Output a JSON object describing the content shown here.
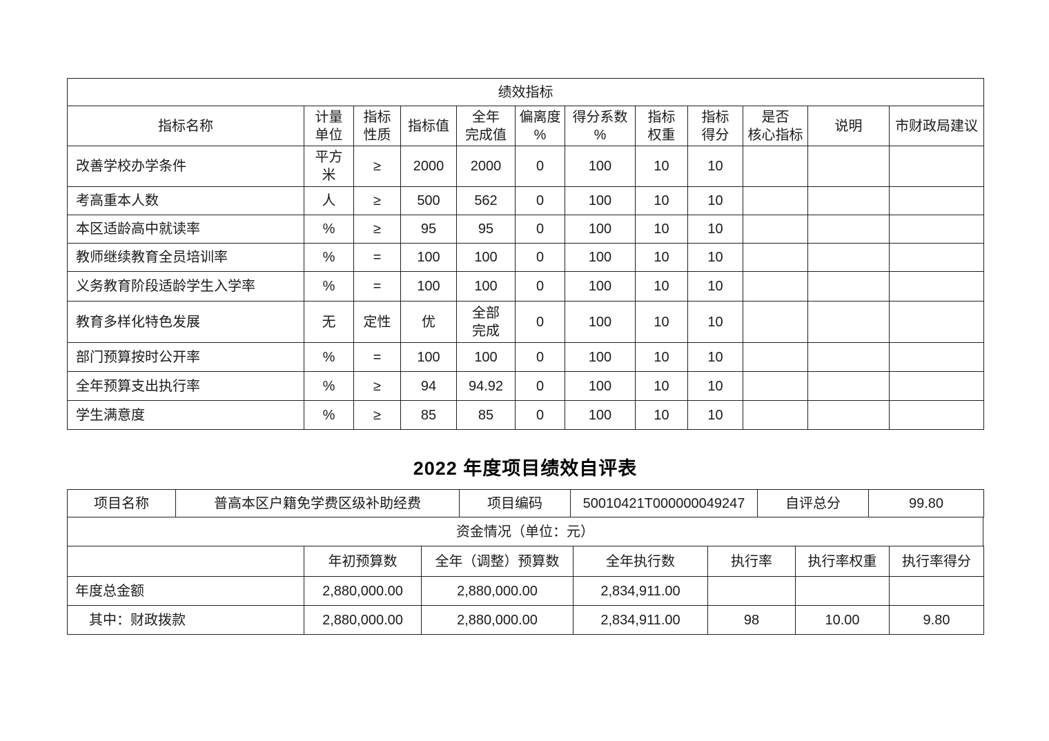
{
  "indicator_table": {
    "section_title": "绩效指标",
    "headers": [
      "指标名称",
      "计量\n单位",
      "指标\n性质",
      "指标值",
      "全年\n完成值",
      "偏离度\n%",
      "得分系数\n%",
      "指标\n权重",
      "指标\n得分",
      "是否\n核心指标",
      "说明",
      "市财政局建议"
    ],
    "rows": [
      [
        "改善学校办学条件",
        "平方\n米",
        "≥",
        "2000",
        "2000",
        "0",
        "100",
        "10",
        "10",
        "",
        "",
        ""
      ],
      [
        "考高重本人数",
        "人",
        "≥",
        "500",
        "562",
        "0",
        "100",
        "10",
        "10",
        "",
        "",
        ""
      ],
      [
        "本区适龄高中就读率",
        "%",
        "≥",
        "95",
        "95",
        "0",
        "100",
        "10",
        "10",
        "",
        "",
        ""
      ],
      [
        "教师继续教育全员培训率",
        "%",
        "=",
        "100",
        "100",
        "0",
        "100",
        "10",
        "10",
        "",
        "",
        ""
      ],
      [
        "义务教育阶段适龄学生入学率",
        "%",
        "=",
        "100",
        "100",
        "0",
        "100",
        "10",
        "10",
        "",
        "",
        ""
      ],
      [
        "教育多样化特色发展",
        "无",
        "定性",
        "优",
        "全部\n完成",
        "0",
        "100",
        "10",
        "10",
        "",
        "",
        ""
      ],
      [
        "部门预算按时公开率",
        "%",
        "=",
        "100",
        "100",
        "0",
        "100",
        "10",
        "10",
        "",
        "",
        ""
      ],
      [
        "全年预算支出执行率",
        "%",
        "≥",
        "94",
        "94.92",
        "0",
        "100",
        "10",
        "10",
        "",
        "",
        ""
      ],
      [
        "学生满意度",
        "%",
        "≥",
        "85",
        "85",
        "0",
        "100",
        "10",
        "10",
        "",
        "",
        ""
      ]
    ]
  },
  "self_eval": {
    "title": "2022 年度项目绩效自评表",
    "info": {
      "name_label": "项目名称",
      "name_value": "普高本区户籍免学费区级补助经费",
      "code_label": "项目编码",
      "code_value": "50010421T000000049247",
      "score_label": "自评总分",
      "score_value": "99.80"
    },
    "funding": {
      "section_title": "资金情况（单位：元）",
      "headers": [
        "",
        "年初预算数",
        "全年（调整）预算数",
        "全年执行数",
        "执行率",
        "执行率权重",
        "执行率得分"
      ],
      "rows": [
        [
          "年度总金额",
          "2,880,000.00",
          "2,880,000.00",
          "2,834,911.00",
          "",
          "",
          ""
        ],
        [
          "其中：财政拨款",
          "2,880,000.00",
          "2,880,000.00",
          "2,834,911.00",
          "98",
          "10.00",
          "9.80"
        ]
      ]
    }
  }
}
